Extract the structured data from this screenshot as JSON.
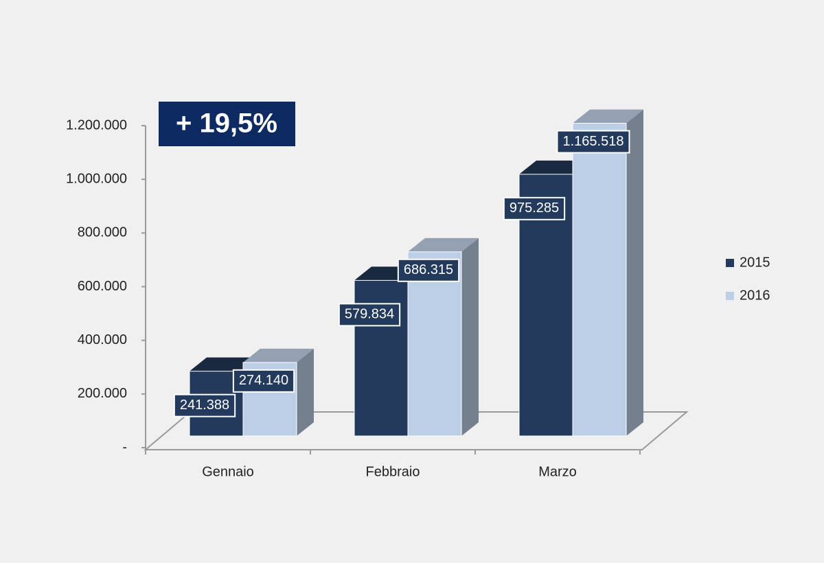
{
  "chart_data": {
    "type": "bar3d",
    "annotation": "+ 19,5%",
    "categories": [
      "Gennaio",
      "Febbraio",
      "Marzo"
    ],
    "series": [
      {
        "name": "2015",
        "color": "#233a5c",
        "values": [
          241388,
          579834,
          975285
        ],
        "value_labels": [
          "241.388",
          "579.834",
          "975.285"
        ]
      },
      {
        "name": "2016",
        "color": "#bccfe6",
        "values": [
          274140,
          686315,
          1165518
        ],
        "value_labels": [
          "274.140",
          "686.315",
          "1.165.518"
        ]
      }
    ],
    "ylim": [
      0,
      1200000
    ],
    "yticks": [
      {
        "value": 0,
        "label": "-"
      },
      {
        "value": 200000,
        "label": "200.000"
      },
      {
        "value": 400000,
        "label": "400.000"
      },
      {
        "value": 600000,
        "label": "600.000"
      },
      {
        "value": 800000,
        "label": "800.000"
      },
      {
        "value": 1000000,
        "label": "1.000.000"
      },
      {
        "value": 1200000,
        "label": "1.200.000"
      }
    ],
    "grid": false,
    "legend": "right"
  }
}
